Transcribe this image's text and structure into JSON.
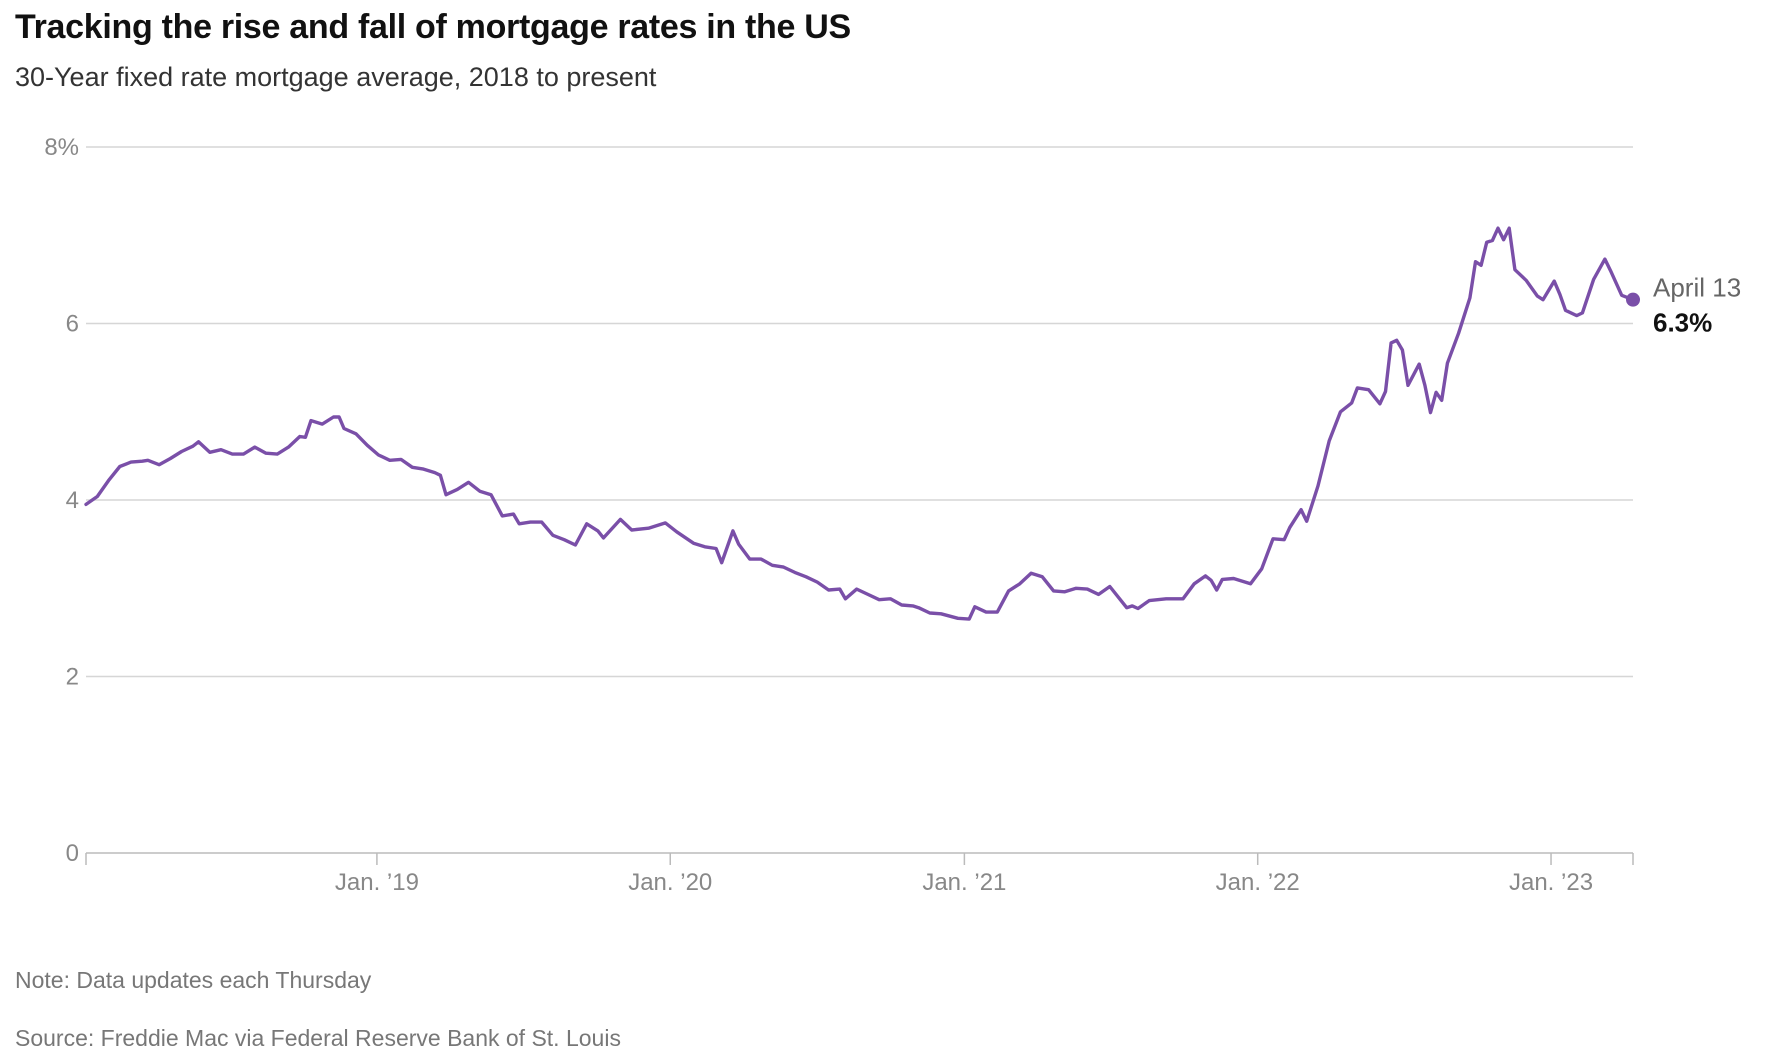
{
  "chart_data": {
    "type": "line",
    "title": "Tracking the rise and fall of mortgage rates in the US",
    "subtitle": "30-Year fixed rate mortgage average, 2018 to present",
    "xlabel": "",
    "ylabel": "",
    "ylim": [
      0,
      8
    ],
    "xlim": [
      "2018-01-04",
      "2023-04-13"
    ],
    "y_ticks": [
      {
        "value": 8,
        "label": "8%"
      },
      {
        "value": 6,
        "label": "6"
      },
      {
        "value": 4,
        "label": "4"
      },
      {
        "value": 2,
        "label": "2"
      },
      {
        "value": 0,
        "label": "0"
      }
    ],
    "x_ticks": [
      {
        "date": "2019-01-01",
        "label": "Jan. ’19"
      },
      {
        "date": "2020-01-01",
        "label": "Jan. ’20"
      },
      {
        "date": "2021-01-01",
        "label": "Jan. ’21"
      },
      {
        "date": "2022-01-01",
        "label": "Jan. ’22"
      },
      {
        "date": "2023-01-01",
        "label": "Jan. ’23"
      }
    ],
    "grid": true,
    "color": "#7a4fa8",
    "series": [
      {
        "name": "30-Year fixed rate mortgage average",
        "points": [
          [
            "2018-01-04",
            3.95
          ],
          [
            "2018-01-18",
            4.04
          ],
          [
            "2018-02-01",
            4.22
          ],
          [
            "2018-02-15",
            4.38
          ],
          [
            "2018-03-01",
            4.43
          ],
          [
            "2018-03-15",
            4.44
          ],
          [
            "2018-03-22",
            4.45
          ],
          [
            "2018-04-05",
            4.4
          ],
          [
            "2018-04-19",
            4.47
          ],
          [
            "2018-05-03",
            4.55
          ],
          [
            "2018-05-17",
            4.61
          ],
          [
            "2018-05-24",
            4.66
          ],
          [
            "2018-06-07",
            4.54
          ],
          [
            "2018-06-21",
            4.57
          ],
          [
            "2018-07-05",
            4.52
          ],
          [
            "2018-07-19",
            4.52
          ],
          [
            "2018-08-02",
            4.6
          ],
          [
            "2018-08-16",
            4.53
          ],
          [
            "2018-08-30",
            4.52
          ],
          [
            "2018-09-13",
            4.6
          ],
          [
            "2018-09-27",
            4.72
          ],
          [
            "2018-10-04",
            4.71
          ],
          [
            "2018-10-11",
            4.9
          ],
          [
            "2018-10-25",
            4.86
          ],
          [
            "2018-11-08",
            4.94
          ],
          [
            "2018-11-15",
            4.94
          ],
          [
            "2018-11-21",
            4.81
          ],
          [
            "2018-12-06",
            4.75
          ],
          [
            "2018-12-20",
            4.62
          ],
          [
            "2019-01-03",
            4.51
          ],
          [
            "2019-01-17",
            4.45
          ],
          [
            "2019-01-31",
            4.46
          ],
          [
            "2019-02-14",
            4.37
          ],
          [
            "2019-02-28",
            4.35
          ],
          [
            "2019-03-14",
            4.31
          ],
          [
            "2019-03-21",
            4.28
          ],
          [
            "2019-03-28",
            4.06
          ],
          [
            "2019-04-11",
            4.12
          ],
          [
            "2019-04-25",
            4.2
          ],
          [
            "2019-05-09",
            4.1
          ],
          [
            "2019-05-23",
            4.06
          ],
          [
            "2019-06-06",
            3.82
          ],
          [
            "2019-06-20",
            3.84
          ],
          [
            "2019-06-27",
            3.73
          ],
          [
            "2019-07-11",
            3.75
          ],
          [
            "2019-07-25",
            3.75
          ],
          [
            "2019-08-08",
            3.6
          ],
          [
            "2019-08-22",
            3.55
          ],
          [
            "2019-09-05",
            3.49
          ],
          [
            "2019-09-19",
            3.73
          ],
          [
            "2019-10-03",
            3.65
          ],
          [
            "2019-10-10",
            3.57
          ],
          [
            "2019-10-31",
            3.78
          ],
          [
            "2019-11-14",
            3.66
          ],
          [
            "2019-12-05",
            3.68
          ],
          [
            "2019-12-26",
            3.74
          ],
          [
            "2020-01-09",
            3.64
          ],
          [
            "2020-01-30",
            3.51
          ],
          [
            "2020-02-13",
            3.47
          ],
          [
            "2020-02-27",
            3.45
          ],
          [
            "2020-03-05",
            3.29
          ],
          [
            "2020-03-19",
            3.65
          ],
          [
            "2020-03-26",
            3.5
          ],
          [
            "2020-04-09",
            3.33
          ],
          [
            "2020-04-23",
            3.33
          ],
          [
            "2020-05-07",
            3.26
          ],
          [
            "2020-05-21",
            3.24
          ],
          [
            "2020-06-04",
            3.18
          ],
          [
            "2020-06-18",
            3.13
          ],
          [
            "2020-07-02",
            3.07
          ],
          [
            "2020-07-16",
            2.98
          ],
          [
            "2020-07-30",
            2.99
          ],
          [
            "2020-08-06",
            2.88
          ],
          [
            "2020-08-20",
            2.99
          ],
          [
            "2020-09-03",
            2.93
          ],
          [
            "2020-09-17",
            2.87
          ],
          [
            "2020-10-01",
            2.88
          ],
          [
            "2020-10-15",
            2.81
          ],
          [
            "2020-10-29",
            2.8
          ],
          [
            "2020-11-05",
            2.78
          ],
          [
            "2020-11-19",
            2.72
          ],
          [
            "2020-12-03",
            2.71
          ],
          [
            "2020-12-24",
            2.66
          ],
          [
            "2021-01-07",
            2.65
          ],
          [
            "2021-01-14",
            2.79
          ],
          [
            "2021-01-28",
            2.73
          ],
          [
            "2021-02-11",
            2.73
          ],
          [
            "2021-02-25",
            2.97
          ],
          [
            "2021-03-11",
            3.05
          ],
          [
            "2021-03-25",
            3.17
          ],
          [
            "2021-04-08",
            3.13
          ],
          [
            "2021-04-22",
            2.97
          ],
          [
            "2021-05-06",
            2.96
          ],
          [
            "2021-05-20",
            3.0
          ],
          [
            "2021-06-03",
            2.99
          ],
          [
            "2021-06-17",
            2.93
          ],
          [
            "2021-07-01",
            3.02
          ],
          [
            "2021-07-22",
            2.78
          ],
          [
            "2021-07-29",
            2.8
          ],
          [
            "2021-08-05",
            2.77
          ],
          [
            "2021-08-19",
            2.86
          ],
          [
            "2021-09-09",
            2.88
          ],
          [
            "2021-09-30",
            2.88
          ],
          [
            "2021-10-14",
            3.05
          ],
          [
            "2021-10-28",
            3.14
          ],
          [
            "2021-11-04",
            3.09
          ],
          [
            "2021-11-11",
            2.98
          ],
          [
            "2021-11-18",
            3.1
          ],
          [
            "2021-12-02",
            3.11
          ],
          [
            "2021-12-23",
            3.05
          ],
          [
            "2022-01-06",
            3.22
          ],
          [
            "2022-01-20",
            3.56
          ],
          [
            "2022-02-03",
            3.55
          ],
          [
            "2022-02-10",
            3.69
          ],
          [
            "2022-02-24",
            3.89
          ],
          [
            "2022-03-03",
            3.76
          ],
          [
            "2022-03-17",
            4.16
          ],
          [
            "2022-03-31",
            4.67
          ],
          [
            "2022-04-14",
            5.0
          ],
          [
            "2022-04-28",
            5.1
          ],
          [
            "2022-05-05",
            5.27
          ],
          [
            "2022-05-19",
            5.25
          ],
          [
            "2022-06-02",
            5.09
          ],
          [
            "2022-06-09",
            5.23
          ],
          [
            "2022-06-16",
            5.78
          ],
          [
            "2022-06-23",
            5.81
          ],
          [
            "2022-06-30",
            5.7
          ],
          [
            "2022-07-07",
            5.3
          ],
          [
            "2022-07-21",
            5.54
          ],
          [
            "2022-07-28",
            5.3
          ],
          [
            "2022-08-04",
            4.99
          ],
          [
            "2022-08-11",
            5.22
          ],
          [
            "2022-08-18",
            5.13
          ],
          [
            "2022-08-25",
            5.55
          ],
          [
            "2022-09-08",
            5.89
          ],
          [
            "2022-09-22",
            6.29
          ],
          [
            "2022-09-29",
            6.7
          ],
          [
            "2022-10-06",
            6.66
          ],
          [
            "2022-10-13",
            6.92
          ],
          [
            "2022-10-20",
            6.94
          ],
          [
            "2022-10-27",
            7.08
          ],
          [
            "2022-11-03",
            6.95
          ],
          [
            "2022-11-10",
            7.08
          ],
          [
            "2022-11-17",
            6.61
          ],
          [
            "2022-12-01",
            6.49
          ],
          [
            "2022-12-15",
            6.31
          ],
          [
            "2022-12-22",
            6.27
          ],
          [
            "2023-01-05",
            6.48
          ],
          [
            "2023-01-12",
            6.33
          ],
          [
            "2023-01-19",
            6.15
          ],
          [
            "2023-02-02",
            6.09
          ],
          [
            "2023-02-09",
            6.12
          ],
          [
            "2023-02-23",
            6.5
          ],
          [
            "2023-03-09",
            6.73
          ],
          [
            "2023-03-16",
            6.6
          ],
          [
            "2023-03-30",
            6.32
          ],
          [
            "2023-04-13",
            6.27
          ]
        ]
      }
    ],
    "annotation": {
      "date_label": "April 13",
      "value_label": "6.3%"
    },
    "note": "Note: Data updates each Thursday",
    "source": "Source: Freddie Mac via Federal Reserve Bank of St. Louis"
  }
}
